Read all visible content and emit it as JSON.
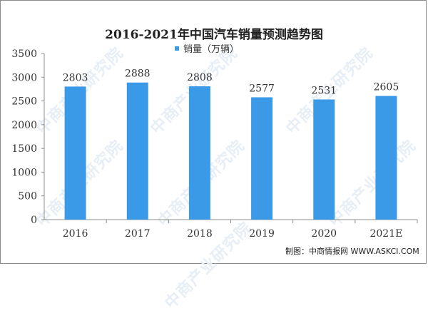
{
  "watermark": "中商产业研究院",
  "credit": "制图：中商情报网 WWW.ASKCI.COM",
  "chart_data": {
    "type": "bar",
    "title": "2016-2021年中国汽车销量预测趋势图",
    "categories": [
      "2016",
      "2017",
      "2018",
      "2019",
      "2020",
      "2021E"
    ],
    "series": [
      {
        "name": "销量（万辆）",
        "values": [
          2803,
          2888,
          2808,
          2577,
          2531,
          2605
        ]
      }
    ],
    "ylim": [
      0,
      3500
    ],
    "yticks": [
      0,
      500,
      1000,
      1500,
      2000,
      2500,
      3000,
      3500
    ],
    "grid": false,
    "legend_position": "top-center",
    "colors": {
      "bar": "#3b9ae8",
      "axis": "#8c8c8c",
      "text": "#333333"
    }
  }
}
